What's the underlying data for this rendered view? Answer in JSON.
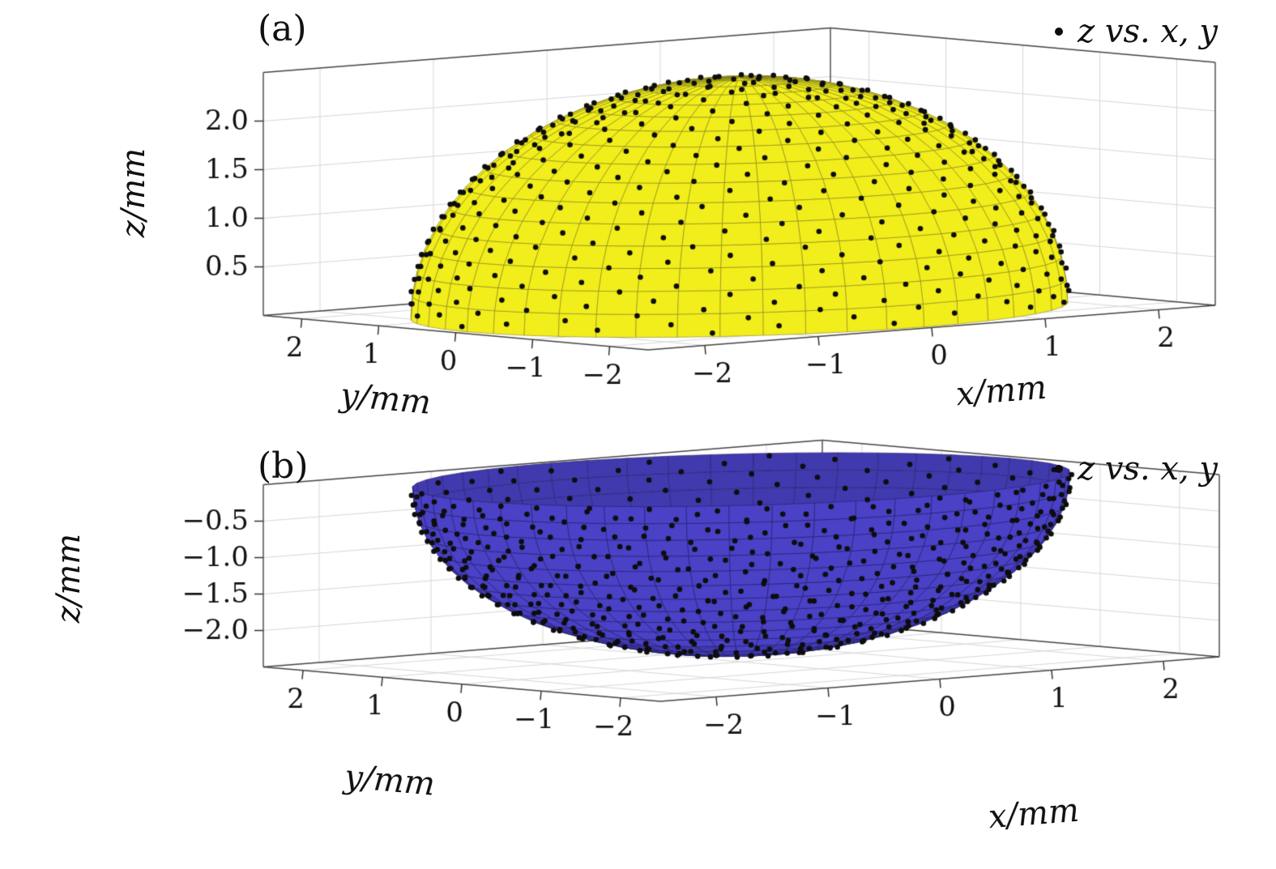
{
  "figure": {
    "background": "#ffffff",
    "text_color": "#111111"
  },
  "chart_data": [
    {
      "panel": "a",
      "panel_label": "(a)",
      "type": "3d-surface-with-scatter",
      "legend": {
        "marker": "dot",
        "label": "z vs. x, y",
        "position": "top-right"
      },
      "surface": {
        "shape": "hemisphere",
        "half": "upper",
        "radius_mm": 2.4,
        "center_mm": [
          0,
          0,
          0
        ],
        "equation": "z = +sqrt(r^2 - x^2 - y^2)",
        "fill_color": "#f2ee1b",
        "mesh_color": "#84821e",
        "mesh": {
          "rings": 16,
          "sectors": 48
        }
      },
      "scatter": {
        "marker": "dot",
        "color": "#0d0d0d",
        "count": 550,
        "distribution": "quasi-uniform points on hemisphere surface (fibonacci spiral)"
      },
      "axes": {
        "xlabel": "x/mm",
        "ylabel": "y/mm",
        "zlabel": "z/mm",
        "xlim": [
          -2.5,
          2.5
        ],
        "ylim": [
          -2.5,
          2.5
        ],
        "zlim": [
          0,
          2.5
        ],
        "xticks": [
          -2,
          -1,
          0,
          1,
          2
        ],
        "xticklabels": [
          "−2",
          "−1",
          "0",
          "1",
          "2"
        ],
        "yticks": [
          2,
          1,
          0,
          -1,
          -2
        ],
        "yticklabels": [
          "2",
          "1",
          "0",
          "−1",
          "−2"
        ],
        "zticks": [
          0.5,
          1.0,
          1.5,
          2.0
        ],
        "zticklabels": [
          "0.5",
          "1.0",
          "1.5",
          "2.0"
        ],
        "grid": true
      }
    },
    {
      "panel": "b",
      "panel_label": "(b)",
      "type": "3d-surface-with-scatter",
      "legend": {
        "marker": "dot",
        "label": "z vs. x, y",
        "position": "top-right"
      },
      "surface": {
        "shape": "hemisphere",
        "half": "lower",
        "radius_mm": 2.4,
        "center_mm": [
          0,
          0,
          0
        ],
        "equation": "z = -sqrt(r^2 - x^2 - y^2)",
        "fill_color": "#4a41c6",
        "mesh_color": "#232066",
        "mesh": {
          "rings": 16,
          "sectors": 48
        }
      },
      "scatter": {
        "marker": "dot",
        "color": "#0d0d0d",
        "count": 550,
        "distribution": "quasi-uniform points on hemisphere surface (fibonacci spiral)"
      },
      "axes": {
        "xlabel": "x/mm",
        "ylabel": "y/mm",
        "zlabel": "z/mm",
        "xlim": [
          -2.5,
          2.5
        ],
        "ylim": [
          -2.5,
          2.5
        ],
        "zlim": [
          -2.5,
          0
        ],
        "xticks": [
          -2,
          -1,
          0,
          1,
          2
        ],
        "xticklabels": [
          "−2",
          "−1",
          "0",
          "1",
          "2"
        ],
        "yticks": [
          2,
          1,
          0,
          -1,
          -2
        ],
        "yticklabels": [
          "2",
          "1",
          "0",
          "−1",
          "−2"
        ],
        "zticks": [
          -0.5,
          -1.0,
          -1.5,
          -2.0
        ],
        "zticklabels": [
          "−0.5",
          "−1.0",
          "−1.5",
          "−2.0"
        ],
        "grid": true
      }
    }
  ]
}
